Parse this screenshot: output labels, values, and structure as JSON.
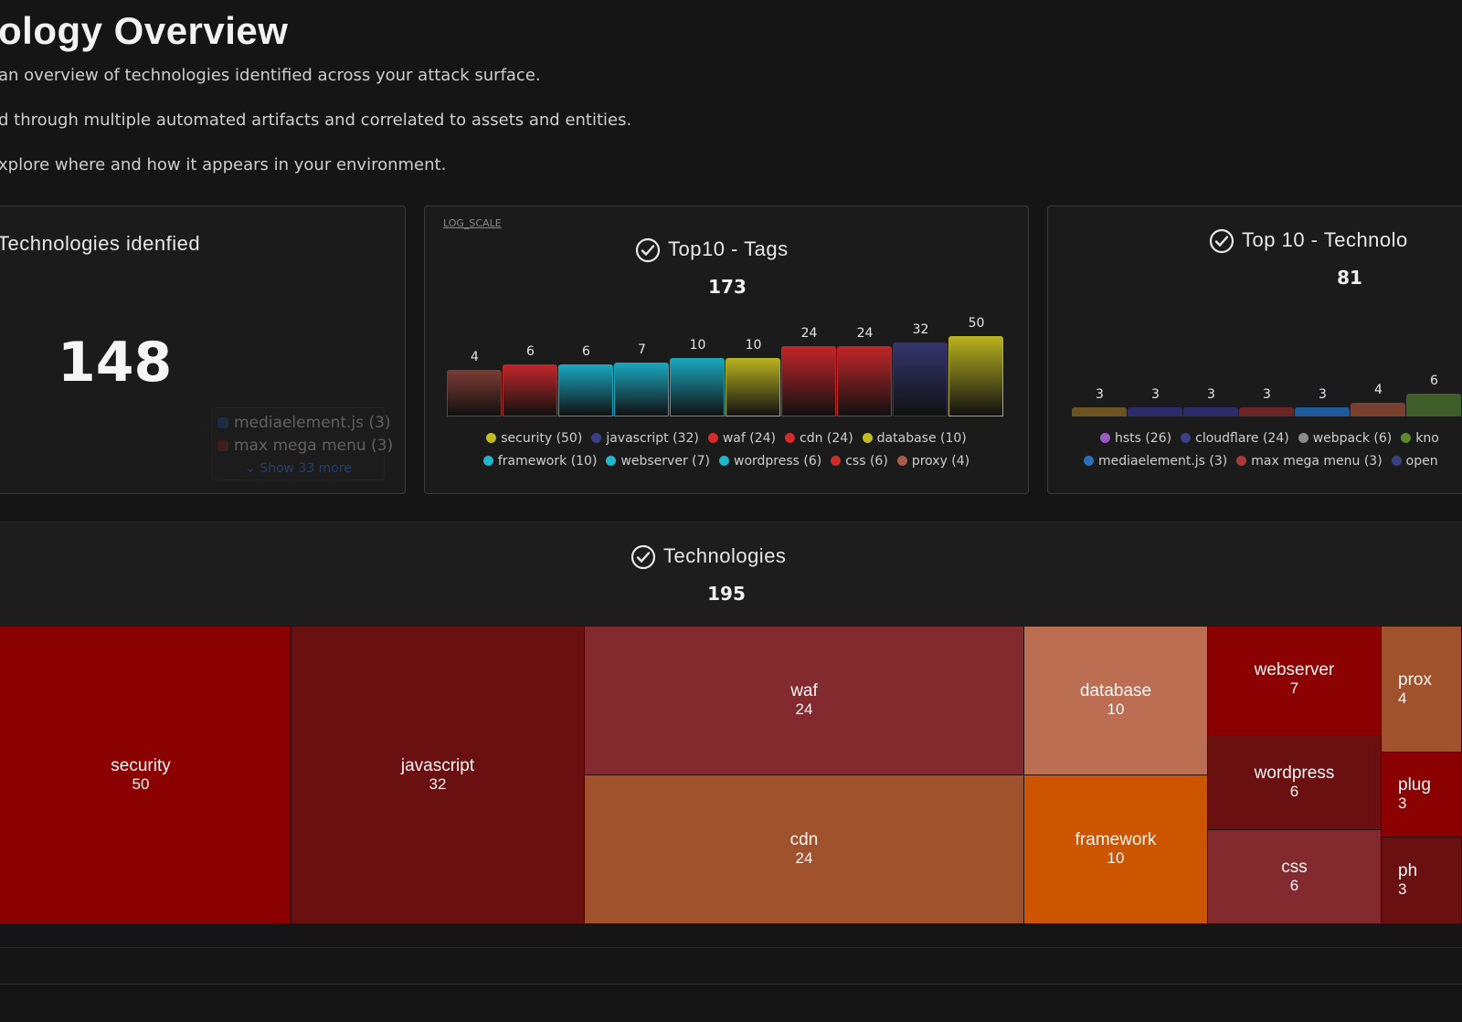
{
  "page": {
    "title": "ology Overview",
    "intro_lines": [
      "an overview of technologies identified across your attack surface.",
      "d through multiple automated artifacts and correlated to assets and entities.",
      "xplore where and how it appears in your environment."
    ]
  },
  "panel_identified": {
    "title": "Technologies idenfied",
    "value": "148",
    "legend": [
      {
        "label": "mediaelement.js (3)",
        "color": "#1f3b66"
      },
      {
        "label": "max mega menu (3)",
        "color": "#5c2020"
      }
    ],
    "show_more": "⌄ Show 33 more"
  },
  "panel_tags": {
    "log_scale_label": "LOG_SCALE",
    "title": "Top10 - Tags",
    "total": "173",
    "chart_data": {
      "type": "bar",
      "categories": [
        "proxy",
        "css",
        "wordpress",
        "webserver",
        "framework",
        "database",
        "cdn",
        "waf",
        "javascript",
        "security"
      ],
      "values": [
        4,
        6,
        6,
        7,
        10,
        10,
        24,
        24,
        32,
        50
      ],
      "colors": [
        "#7a3b34",
        "#c0262a",
        "#1aa6bd",
        "#1aa6bd",
        "#1aa6bd",
        "#b8b120",
        "#c0262a",
        "#c0262a",
        "#35356e",
        "#b8b120"
      ],
      "scale": "log"
    },
    "legend_rows": [
      [
        {
          "label": "security (50)",
          "color": "#c4bd22"
        },
        {
          "label": "javascript (32)",
          "color": "#3b3f86"
        },
        {
          "label": "waf (24)",
          "color": "#d22b2b"
        },
        {
          "label": "cdn (24)",
          "color": "#d22b2b"
        },
        {
          "label": "database (10)",
          "color": "#c4bd22"
        }
      ],
      [
        {
          "label": "framework (10)",
          "color": "#1fb7cc"
        },
        {
          "label": "webserver (7)",
          "color": "#1fb7cc"
        },
        {
          "label": "wordpress (6)",
          "color": "#1fb7cc"
        },
        {
          "label": "css (6)",
          "color": "#d22b2b"
        },
        {
          "label": "proxy (4)",
          "color": "#a85a4c"
        }
      ]
    ]
  },
  "panel_top_tech": {
    "title": "Top 10 - Technolo",
    "total": "81",
    "chart_data": {
      "type": "bar",
      "categories": [
        "",
        "",
        "",
        "",
        "",
        "",
        ""
      ],
      "values": [
        3,
        3,
        3,
        3,
        3,
        4,
        6
      ],
      "labels": [
        "3",
        "3",
        "3",
        "3",
        "3",
        "4",
        "6"
      ],
      "colors": [
        "#6b5420",
        "#2c2c6a",
        "#2c2c6a",
        "#6a2626",
        "#1f5a9a",
        "#7a4030",
        "#3f5e2a"
      ]
    },
    "legend_rows": [
      [
        {
          "label": "hsts (26)",
          "color": "#9a5ac4"
        },
        {
          "label": "cloudflare (24)",
          "color": "#3b3f86"
        },
        {
          "label": "webpack (6)",
          "color": "#8a8a8a"
        },
        {
          "label": "kno",
          "color": "#5a8a30"
        }
      ],
      [
        {
          "label": "mediaelement.js (3)",
          "color": "#2a6fb8"
        },
        {
          "label": "max mega menu (3)",
          "color": "#a83a3a"
        },
        {
          "label": "open",
          "color": "#3b3f86"
        }
      ]
    ]
  },
  "panel_treemap": {
    "title": "Technologies",
    "total": "195",
    "cells": [
      {
        "name": "security",
        "value": "50",
        "color": "#8b0000"
      },
      {
        "name": "javascript",
        "value": "32",
        "color": "#6b1010"
      },
      {
        "name": "waf",
        "value": "24",
        "color": "#822a2e"
      },
      {
        "name": "cdn",
        "value": "24",
        "color": "#a0522d"
      },
      {
        "name": "database",
        "value": "10",
        "color": "#bc6e53"
      },
      {
        "name": "framework",
        "value": "10",
        "color": "#cc5500"
      },
      {
        "name": "webserver",
        "value": "7",
        "color": "#8b0000"
      },
      {
        "name": "wordpress",
        "value": "6",
        "color": "#6b1010"
      },
      {
        "name": "css",
        "value": "6",
        "color": "#822a2e"
      },
      {
        "name": "prox",
        "value": "4",
        "color": "#a0522d"
      },
      {
        "name": "plug",
        "value": "3",
        "color": "#8b0000"
      },
      {
        "name": "ph",
        "value": "3",
        "color": "#6b1010"
      }
    ]
  }
}
